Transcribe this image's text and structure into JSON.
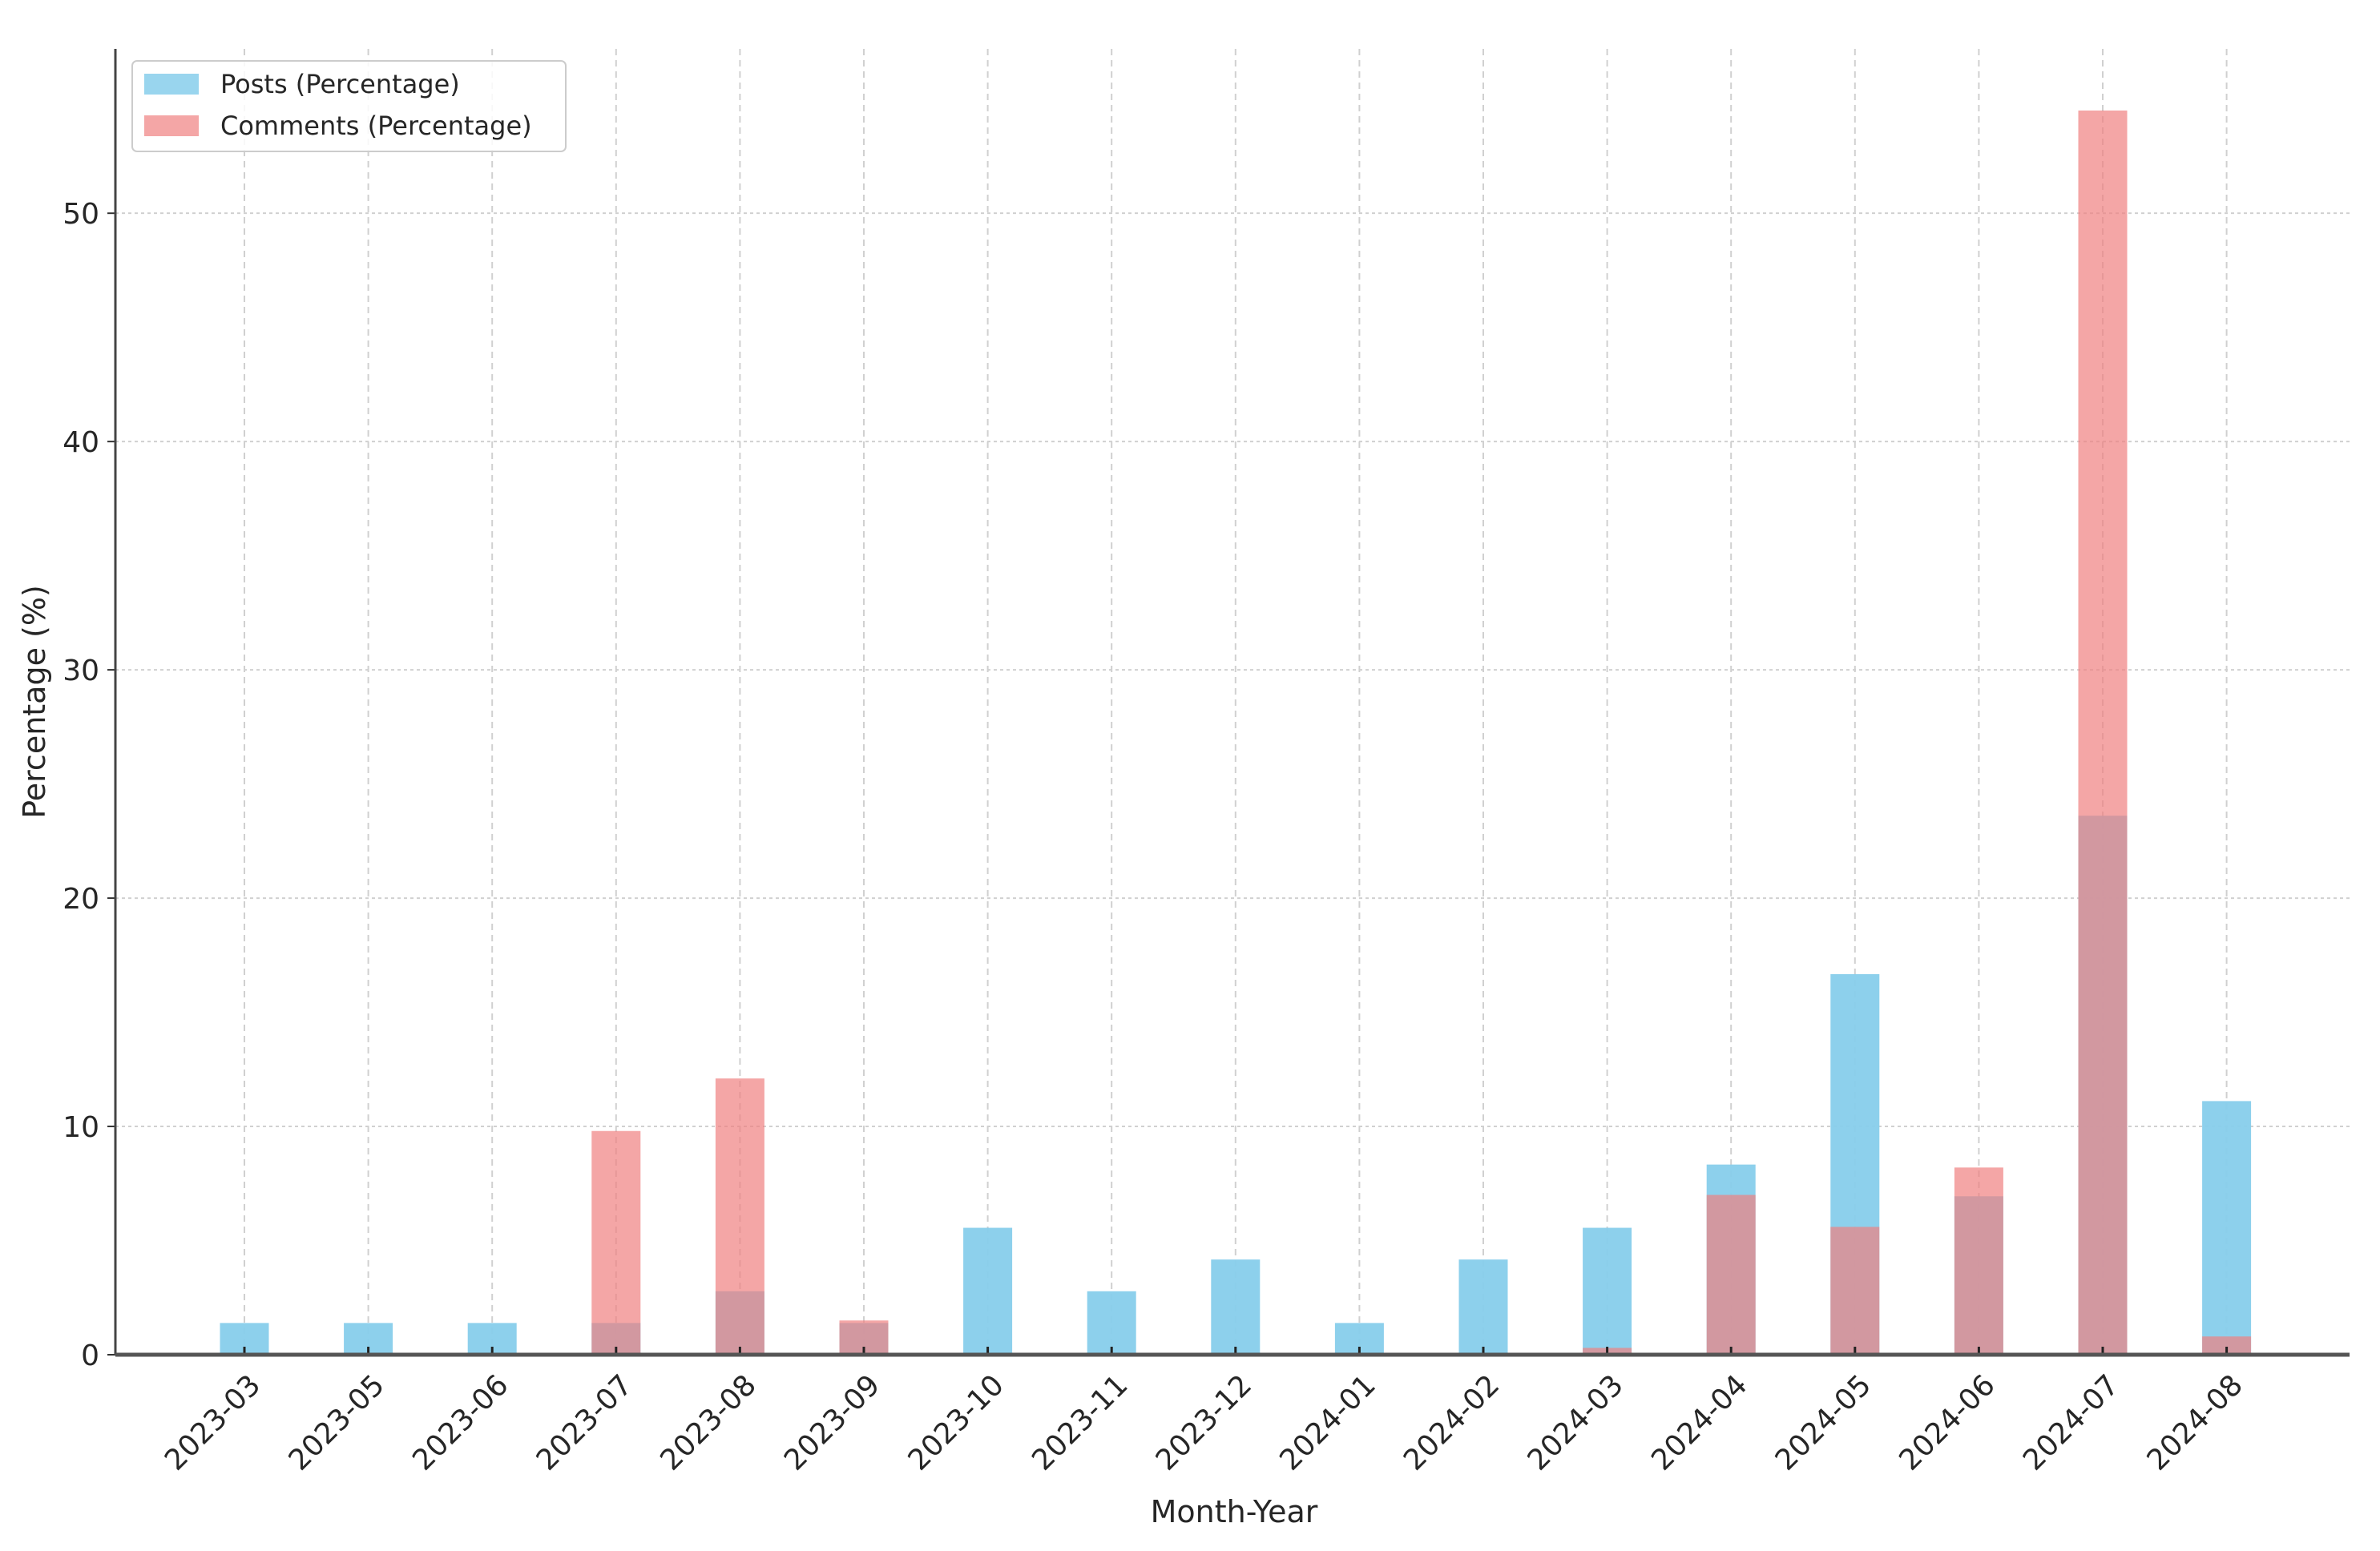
{
  "chart_data": {
    "type": "bar",
    "title": "",
    "xlabel": "Month-Year",
    "ylabel": "Percentage (%)",
    "ylim": [
      0,
      57.2
    ],
    "yticks": [
      0,
      10,
      20,
      30,
      40,
      50
    ],
    "grid": true,
    "legend_position": "top-left",
    "categories": [
      "2023-03",
      "2023-05",
      "2023-06",
      "2023-07",
      "2023-08",
      "2023-09",
      "2023-10",
      "2023-11",
      "2023-12",
      "2024-01",
      "2024-02",
      "2024-03",
      "2024-04",
      "2024-05",
      "2024-06",
      "2024-07",
      "2024-08"
    ],
    "series": [
      {
        "name": "Posts (Percentage)",
        "color": "#87ceeb",
        "values": [
          1.39,
          1.39,
          1.39,
          1.39,
          2.78,
          1.39,
          5.56,
          2.78,
          4.17,
          1.39,
          4.17,
          5.56,
          8.33,
          16.67,
          6.94,
          23.61,
          11.11
        ]
      },
      {
        "name": "Comments (Percentage)",
        "color": "#f08080",
        "values": [
          0,
          0,
          0,
          9.8,
          12.1,
          1.5,
          0,
          0,
          0,
          0,
          0,
          0.3,
          7.0,
          5.6,
          8.2,
          54.5,
          0.8
        ]
      }
    ]
  }
}
